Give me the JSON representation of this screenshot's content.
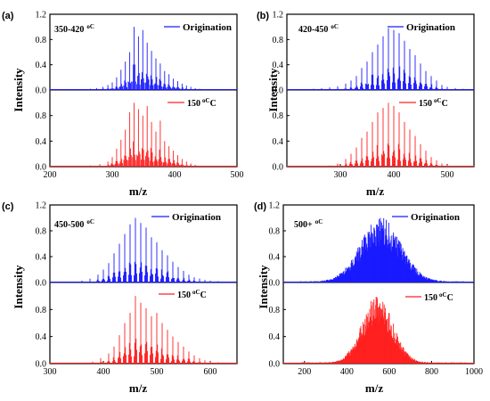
{
  "figure": {
    "panels": [
      {
        "letter": "(a)",
        "range": "350-420",
        "unit": "oC",
        "top_legend": "Origination",
        "bottom_legend": "150",
        "bottom_unit": "oC",
        "xlabel": "m/z",
        "ylabel": "Intensity"
      },
      {
        "letter": "(b)",
        "range": "420-450",
        "unit": "oC",
        "top_legend": "Origination",
        "bottom_legend": "150",
        "bottom_unit": "oC",
        "xlabel": "m/z",
        "ylabel": "Intensity"
      },
      {
        "letter": "(c)",
        "range": "450-500",
        "unit": "oC",
        "top_legend": "Origination",
        "bottom_legend": "150",
        "bottom_unit": "oC",
        "xlabel": "m/z",
        "ylabel": "Intensity"
      },
      {
        "letter": "(d)",
        "range": "500+",
        "unit": "oC",
        "top_legend": "Origination",
        "bottom_legend": "150",
        "bottom_unit": "oC",
        "xlabel": "m/z",
        "ylabel": "Intensity"
      }
    ],
    "colors": {
      "top": "#1a1aff",
      "bottom": "#ff2020",
      "axis": "#000000"
    }
  },
  "chart_data": [
    {
      "type": "bar",
      "panel": "(a)",
      "xlim": [
        200,
        500
      ],
      "xticks": [
        200,
        300,
        400,
        500
      ],
      "ylim": [
        0,
        1.2
      ],
      "yticks": [
        0.0,
        0.4,
        0.8,
        1.2
      ],
      "yticks_top": [
        0.0,
        0.4,
        0.8,
        1.2
      ],
      "yticks_bottom": [
        0.0,
        0.4,
        0.8
      ],
      "series": [
        {
          "name": "Origination",
          "position": "top",
          "peak_x": [
            265,
            275,
            285,
            293,
            300,
            307,
            314,
            321,
            328,
            335,
            342,
            349,
            356,
            363,
            370,
            377,
            384,
            391,
            398,
            405,
            412,
            419,
            426,
            433,
            440
          ],
          "peak_y": [
            0.02,
            0.03,
            0.05,
            0.08,
            0.12,
            0.2,
            0.32,
            0.45,
            0.6,
            1.0,
            0.85,
            0.95,
            0.75,
            0.62,
            0.5,
            0.42,
            0.3,
            0.25,
            0.18,
            0.14,
            0.1,
            0.07,
            0.05,
            0.03,
            0.02
          ]
        },
        {
          "name": "150",
          "position": "bottom",
          "peak_x": [
            265,
            280,
            293,
            300,
            307,
            314,
            321,
            328,
            335,
            342,
            349,
            356,
            363,
            370,
            377,
            384,
            391,
            398,
            405,
            412,
            419,
            426,
            433
          ],
          "peak_y": [
            0.02,
            0.04,
            0.08,
            0.15,
            0.28,
            0.42,
            0.58,
            0.85,
            1.0,
            0.9,
            0.8,
            0.95,
            0.7,
            0.55,
            0.72,
            0.4,
            0.32,
            0.25,
            0.18,
            0.12,
            0.08,
            0.05,
            0.03
          ]
        }
      ]
    },
    {
      "type": "bar",
      "panel": "(b)",
      "xlim": [
        200,
        550
      ],
      "xticks": [
        300,
        400,
        500
      ],
      "ylim": [
        0,
        1.2
      ],
      "yticks_top": [
        0.0,
        0.4,
        0.8,
        1.2
      ],
      "yticks_bottom": [
        0.0,
        0.4,
        0.8
      ],
      "series": [
        {
          "name": "Origination",
          "position": "top",
          "peak_x": [
            250,
            265,
            280,
            295,
            310,
            320,
            330,
            340,
            350,
            360,
            370,
            380,
            390,
            400,
            410,
            420,
            430,
            440,
            450,
            460,
            470,
            480,
            490,
            500,
            515,
            530
          ],
          "peak_y": [
            0.02,
            0.03,
            0.04,
            0.06,
            0.1,
            0.15,
            0.22,
            0.35,
            0.45,
            0.6,
            0.72,
            0.85,
            0.98,
            0.95,
            0.9,
            0.78,
            0.65,
            0.55,
            0.42,
            0.3,
            0.22,
            0.15,
            0.08,
            0.05,
            0.03,
            0.02
          ]
        },
        {
          "name": "150",
          "position": "bottom",
          "peak_x": [
            280,
            295,
            310,
            320,
            330,
            340,
            350,
            360,
            370,
            380,
            390,
            400,
            410,
            420,
            430,
            440,
            450,
            460,
            470,
            480,
            490,
            500
          ],
          "peak_y": [
            0.02,
            0.05,
            0.12,
            0.2,
            0.3,
            0.45,
            0.55,
            0.7,
            0.85,
            0.92,
            1.0,
            0.95,
            0.85,
            0.7,
            0.58,
            0.48,
            0.35,
            0.25,
            0.15,
            0.1,
            0.05,
            0.03
          ]
        }
      ]
    },
    {
      "type": "bar",
      "panel": "(c)",
      "xlim": [
        300,
        650
      ],
      "xticks": [
        300,
        400,
        500,
        600
      ],
      "ylim": [
        0,
        1.2
      ],
      "yticks_top": [
        0.0,
        0.4,
        0.8,
        1.2
      ],
      "yticks_bottom": [
        0.0,
        0.4,
        0.8
      ],
      "series": [
        {
          "name": "Origination",
          "position": "top",
          "peak_x": [
            360,
            375,
            390,
            400,
            410,
            420,
            430,
            440,
            450,
            460,
            470,
            480,
            490,
            500,
            510,
            520,
            530,
            540,
            550,
            560,
            570,
            580,
            590,
            600,
            615
          ],
          "peak_y": [
            0.03,
            0.06,
            0.12,
            0.2,
            0.3,
            0.45,
            0.6,
            0.75,
            0.9,
            1.0,
            0.92,
            0.85,
            0.7,
            0.62,
            0.5,
            0.42,
            0.32,
            0.24,
            0.18,
            0.12,
            0.08,
            0.06,
            0.04,
            0.03,
            0.02
          ]
        },
        {
          "name": "150",
          "position": "bottom",
          "peak_x": [
            380,
            395,
            410,
            420,
            430,
            440,
            450,
            460,
            470,
            480,
            490,
            500,
            510,
            520,
            530,
            540,
            550,
            560,
            570,
            580,
            590,
            600,
            615
          ],
          "peak_y": [
            0.03,
            0.08,
            0.15,
            0.25,
            0.42,
            0.6,
            0.75,
            1.0,
            0.9,
            0.82,
            0.7,
            0.75,
            0.6,
            0.5,
            0.4,
            0.32,
            0.25,
            0.18,
            0.12,
            0.08,
            0.05,
            0.03,
            0.02
          ]
        }
      ]
    },
    {
      "type": "area",
      "panel": "(d)",
      "xlim": [
        100,
        1000
      ],
      "xticks": [
        200,
        400,
        600,
        800,
        1000
      ],
      "ylim": [
        0,
        1.2
      ],
      "yticks_top": [
        0.0,
        0.4,
        0.8,
        1.2
      ],
      "yticks_bottom": [
        0.0,
        0.4,
        0.8
      ],
      "series": [
        {
          "name": "Origination",
          "position": "top",
          "center": 560,
          "width": 95,
          "peak": 1.0
        },
        {
          "name": "150",
          "position": "bottom",
          "center": 545,
          "width": 72,
          "peak": 1.0
        }
      ]
    }
  ]
}
